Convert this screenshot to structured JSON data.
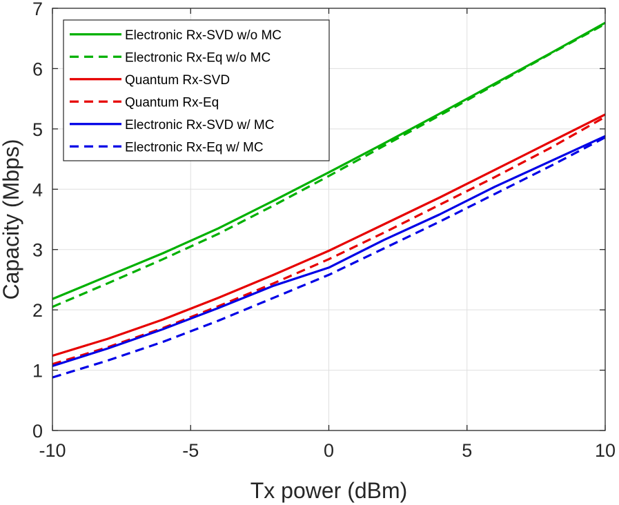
{
  "chart_data": {
    "type": "line",
    "title": "",
    "xlabel": "Tx power (dBm)",
    "ylabel": "Capacity (Mbps)",
    "xlim": [
      -10,
      10
    ],
    "ylim": [
      0,
      7
    ],
    "xticks": [
      -10,
      -5,
      0,
      5,
      10
    ],
    "xtick_labels": [
      "-10",
      "-5",
      "0",
      "5",
      "10"
    ],
    "yticks": [
      0,
      1,
      2,
      3,
      4,
      5,
      6,
      7
    ],
    "ytick_labels": [
      "0",
      "1",
      "2",
      "3",
      "4",
      "5",
      "6",
      "7"
    ],
    "grid": true,
    "legend_position": "top-left",
    "x": [
      -10,
      -8,
      -6,
      -4,
      -2,
      0,
      2,
      4,
      6,
      8,
      10
    ],
    "series": [
      {
        "name": "Electronic Rx-SVD w/o MC",
        "color": "#00b000",
        "style": "solid",
        "values": [
          2.18,
          2.56,
          2.94,
          3.35,
          3.81,
          4.28,
          4.76,
          5.25,
          5.75,
          6.25,
          6.76
        ]
      },
      {
        "name": "Electronic Rx-Eq w/o MC",
        "color": "#00b000",
        "style": "dashed",
        "values": [
          2.05,
          2.44,
          2.84,
          3.26,
          3.73,
          4.22,
          4.72,
          5.22,
          5.73,
          6.24,
          6.74
        ]
      },
      {
        "name": "Quantum Rx-SVD",
        "color": "#e60000",
        "style": "solid",
        "values": [
          1.24,
          1.52,
          1.84,
          2.2,
          2.58,
          2.98,
          3.42,
          3.86,
          4.32,
          4.78,
          5.24
        ]
      },
      {
        "name": "Quantum Rx-Eq",
        "color": "#e60000",
        "style": "dashed",
        "values": [
          1.1,
          1.38,
          1.7,
          2.06,
          2.44,
          2.84,
          3.28,
          3.74,
          4.2,
          4.68,
          5.2
        ]
      },
      {
        "name": "Electronic Rx-SVD w/ MC",
        "color": "#0000e6",
        "style": "solid",
        "values": [
          1.07,
          1.36,
          1.68,
          2.03,
          2.4,
          2.7,
          3.16,
          3.58,
          4.04,
          4.46,
          4.88
        ]
      },
      {
        "name": "Electronic Rx-Eq w/ MC",
        "color": "#0000e6",
        "style": "dashed",
        "values": [
          0.88,
          1.16,
          1.47,
          1.82,
          2.2,
          2.58,
          3.02,
          3.46,
          3.92,
          4.38,
          4.86
        ]
      }
    ]
  }
}
